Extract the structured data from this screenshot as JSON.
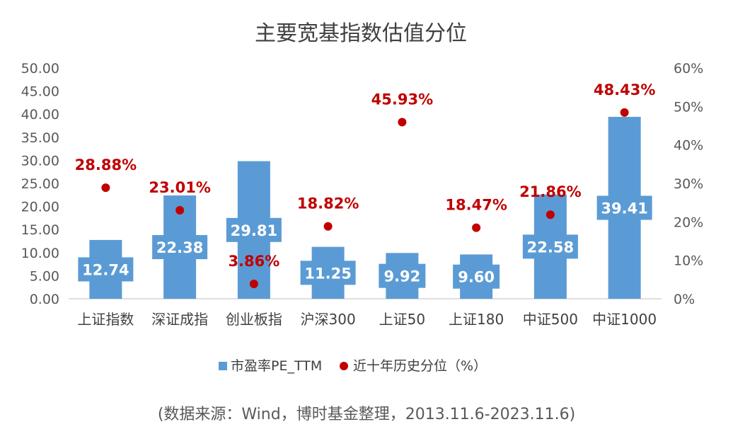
{
  "chart_data": {
    "type": "bar",
    "title": "主要宽基指数估值分位",
    "categories": [
      "上证指数",
      "深证成指",
      "创业板指",
      "沪深300",
      "上证50",
      "上证180",
      "中证500",
      "中证1000"
    ],
    "series": [
      {
        "name": "市盈率PE_TTM",
        "type": "bar",
        "axis": "left",
        "color": "#5B9BD5",
        "values": [
          12.74,
          22.38,
          29.81,
          11.25,
          9.92,
          9.6,
          22.58,
          39.41
        ],
        "labels": [
          "12.74",
          "22.38",
          "29.81",
          "11.25",
          "9.92",
          "9.60",
          "22.58",
          "39.41"
        ]
      },
      {
        "name": "近十年历史分位（%）",
        "type": "scatter",
        "axis": "right",
        "color": "#C00000",
        "values": [
          28.88,
          23.01,
          3.86,
          18.82,
          45.93,
          18.47,
          21.86,
          48.43
        ],
        "labels": [
          "28.88%",
          "23.01%",
          "3.86%",
          "18.82%",
          "45.93%",
          "18.47%",
          "21.86%",
          "48.43%"
        ]
      }
    ],
    "y_left": {
      "ylim": [
        0,
        50
      ],
      "ticks": [
        "0.00",
        "5.00",
        "10.00",
        "15.00",
        "20.00",
        "25.00",
        "30.00",
        "35.00",
        "40.00",
        "45.00",
        "50.00"
      ]
    },
    "y_right": {
      "ylim": [
        0,
        60
      ],
      "ticks": [
        "0%",
        "10%",
        "20%",
        "30%",
        "40%",
        "50%",
        "60%"
      ]
    },
    "grid": false,
    "legend": "bottom-center",
    "source_note": "(数据来源：Wind，博时基金整理，2013.11.6-2023.11.6)"
  }
}
